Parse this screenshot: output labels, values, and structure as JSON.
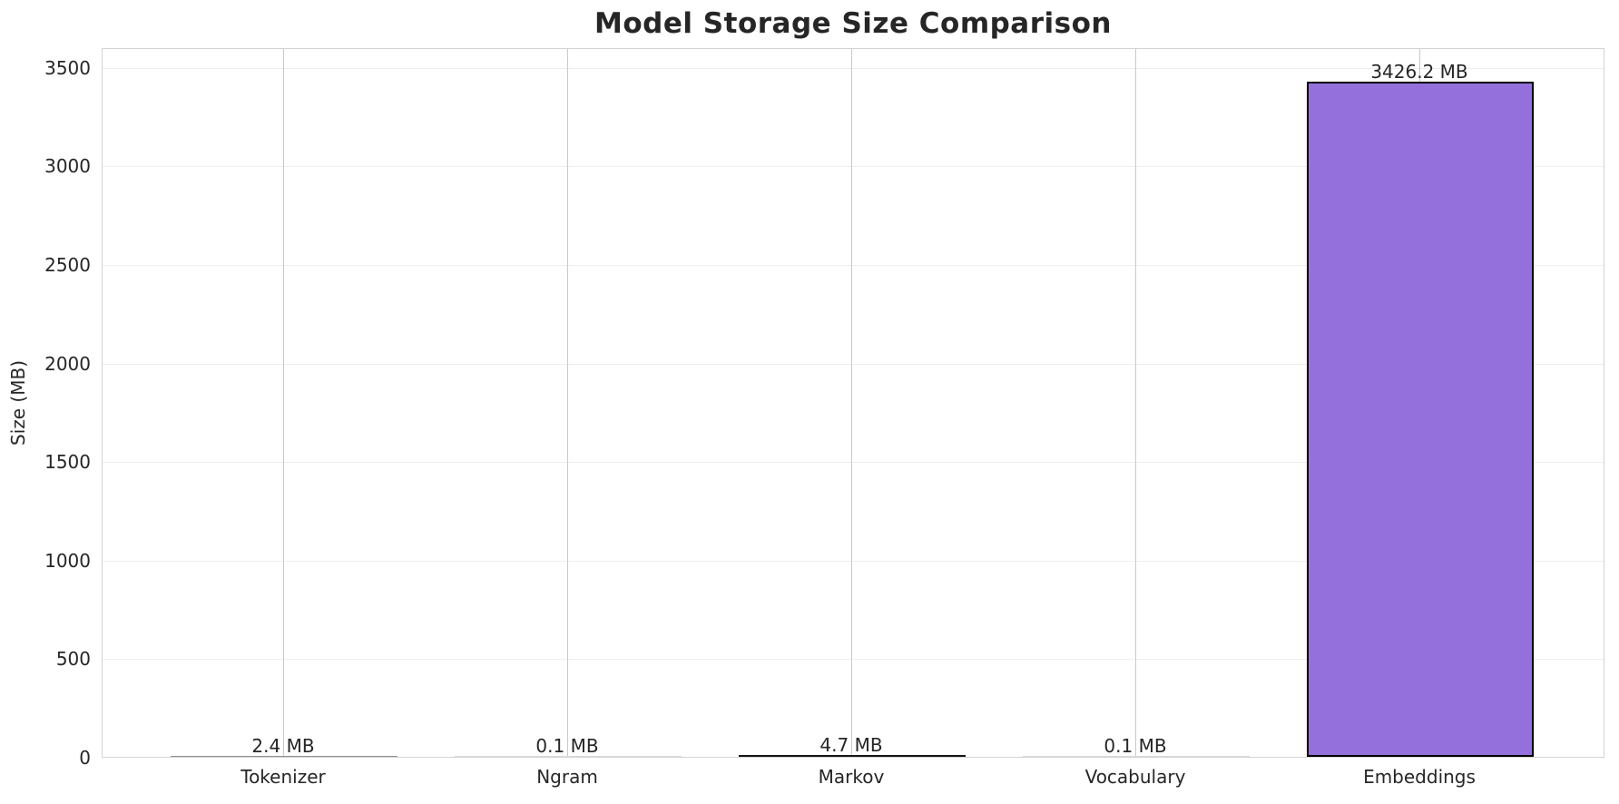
{
  "chart_data": {
    "type": "bar",
    "title": "Model Storage Size Comparison",
    "ylabel": "Size (MB)",
    "xlabel": "",
    "categories": [
      "Tokenizer",
      "Ngram",
      "Markov",
      "Vocabulary",
      "Embeddings"
    ],
    "values": [
      2.4,
      0.1,
      4.7,
      0.1,
      3426.2
    ],
    "value_labels": [
      "2.4 MB",
      "0.1 MB",
      "4.7 MB",
      "0.1 MB",
      "3426.2 MB"
    ],
    "yticks": [
      0,
      500,
      1000,
      1500,
      2000,
      2500,
      3000,
      3500
    ],
    "ylim": [
      0,
      3600
    ],
    "grid": true,
    "legend": false,
    "colors": {
      "background": "#ffffff",
      "bar_fill": "#9370DB",
      "bar_edge": "#000000",
      "sliver_colors": [
        "#909090",
        "#d9d9d9",
        "#151515",
        "#d9d9d9",
        "#9370DB"
      ],
      "grid_vertical": "#c9c9c9",
      "grid_horizontal": "#eeeeee",
      "spine": "#d3d3d3",
      "text": "#262626"
    }
  }
}
